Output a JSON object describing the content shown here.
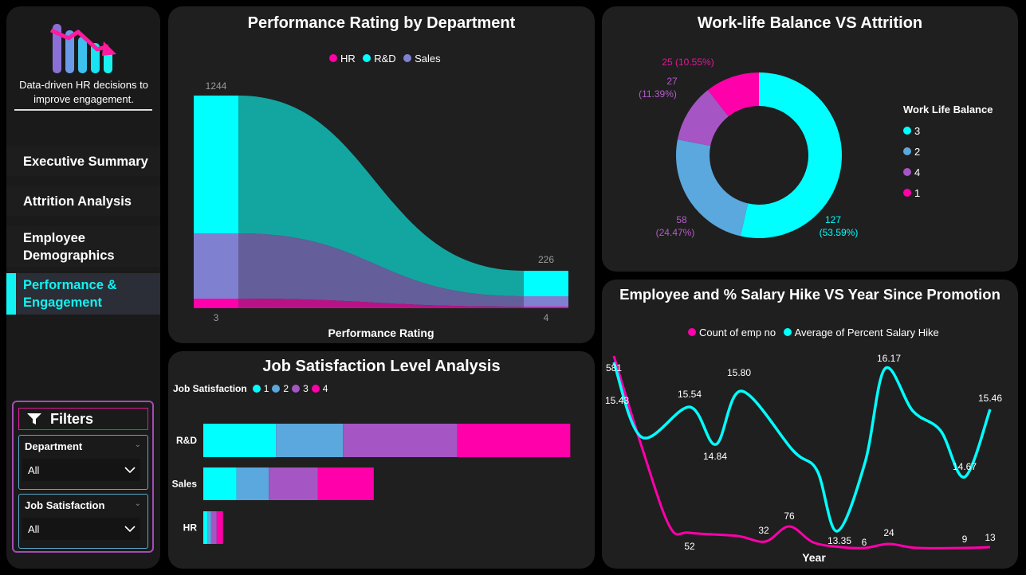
{
  "sidebar": {
    "tagline": "Data-driven HR decisions to improve engagement.",
    "nav": [
      {
        "label": "Executive Summary"
      },
      {
        "label": "Attrition Analysis"
      },
      {
        "label": "Employee Demographics"
      },
      {
        "label": "Performance & Engagement"
      }
    ],
    "filters": {
      "title": "Filters",
      "department": {
        "label": "Department",
        "value": "All"
      },
      "job_satisfaction": {
        "label": "Job Satisfaction",
        "value": "All"
      }
    }
  },
  "colors": {
    "cyan": "#00ffff",
    "blue": "#5aa8dd",
    "purple": "#a555c4",
    "pink": "#ff00aa",
    "lavender": "#8080d0"
  },
  "chart_data": [
    {
      "type": "area",
      "id": "performance",
      "title": "Performance Rating by Department",
      "xlabel": "Performance Rating",
      "series": [
        {
          "name": "HR"
        },
        {
          "name": "R&D"
        },
        {
          "name": "Sales"
        }
      ],
      "x": [
        "3",
        "4"
      ],
      "total_labels": [
        "1244",
        "226"
      ]
    },
    {
      "type": "pie",
      "id": "worklife",
      "title": "Work-life Balance VS Attrition",
      "legend_title": "Work Life Balance",
      "legend": [
        "3",
        "2",
        "4",
        "1"
      ],
      "slices": [
        {
          "name": "3",
          "value": 127,
          "label": "127",
          "pct": "(53.59%)"
        },
        {
          "name": "2",
          "value": 58,
          "label": "58",
          "pct": "(24.47%)"
        },
        {
          "name": "4",
          "value": 27,
          "label": "27",
          "pct": "(11.39%)"
        },
        {
          "name": "1",
          "value": 25,
          "label": "25 (10.55%)",
          "pct": ""
        }
      ]
    },
    {
      "type": "bar",
      "id": "jobsat",
      "title": "Job Satisfaction Level Analysis",
      "legend_title": "Job Satisfaction",
      "legend": [
        "1",
        "2",
        "3",
        "4"
      ],
      "categories": [
        "R&D",
        "Sales",
        "HR"
      ],
      "values": [
        [
          92,
          85,
          145,
          143
        ],
        [
          42,
          41,
          62,
          71
        ],
        [
          5,
          5,
          7,
          8
        ]
      ]
    },
    {
      "type": "line",
      "id": "salary",
      "title": "Employee and % Salary Hike VS Year Since Promotion",
      "xlabel": "Year",
      "series": [
        {
          "name": "Count of emp no"
        },
        {
          "name": "Average of Percent Salary Hike"
        }
      ],
      "count_labels": [
        {
          "label": "581",
          "value": 581
        },
        {
          "label": "52",
          "value": 52
        },
        {
          "label": "32",
          "value": 32
        },
        {
          "label": "76",
          "value": 76
        },
        {
          "label": "6",
          "value": 6
        },
        {
          "label": "24",
          "value": 24
        },
        {
          "label": "9",
          "value": 9
        },
        {
          "label": "13",
          "value": 13
        }
      ],
      "hike_labels": [
        {
          "label": "15.43",
          "value": 15.43
        },
        {
          "label": "15.54",
          "value": 15.54
        },
        {
          "label": "14.84",
          "value": 14.84
        },
        {
          "label": "15.80",
          "value": 15.8
        },
        {
          "label": "13.35",
          "value": 13.35
        },
        {
          "label": "16.17",
          "value": 16.17
        },
        {
          "label": "14.67",
          "value": 14.67
        },
        {
          "label": "15.46",
          "value": 15.46
        }
      ]
    }
  ]
}
